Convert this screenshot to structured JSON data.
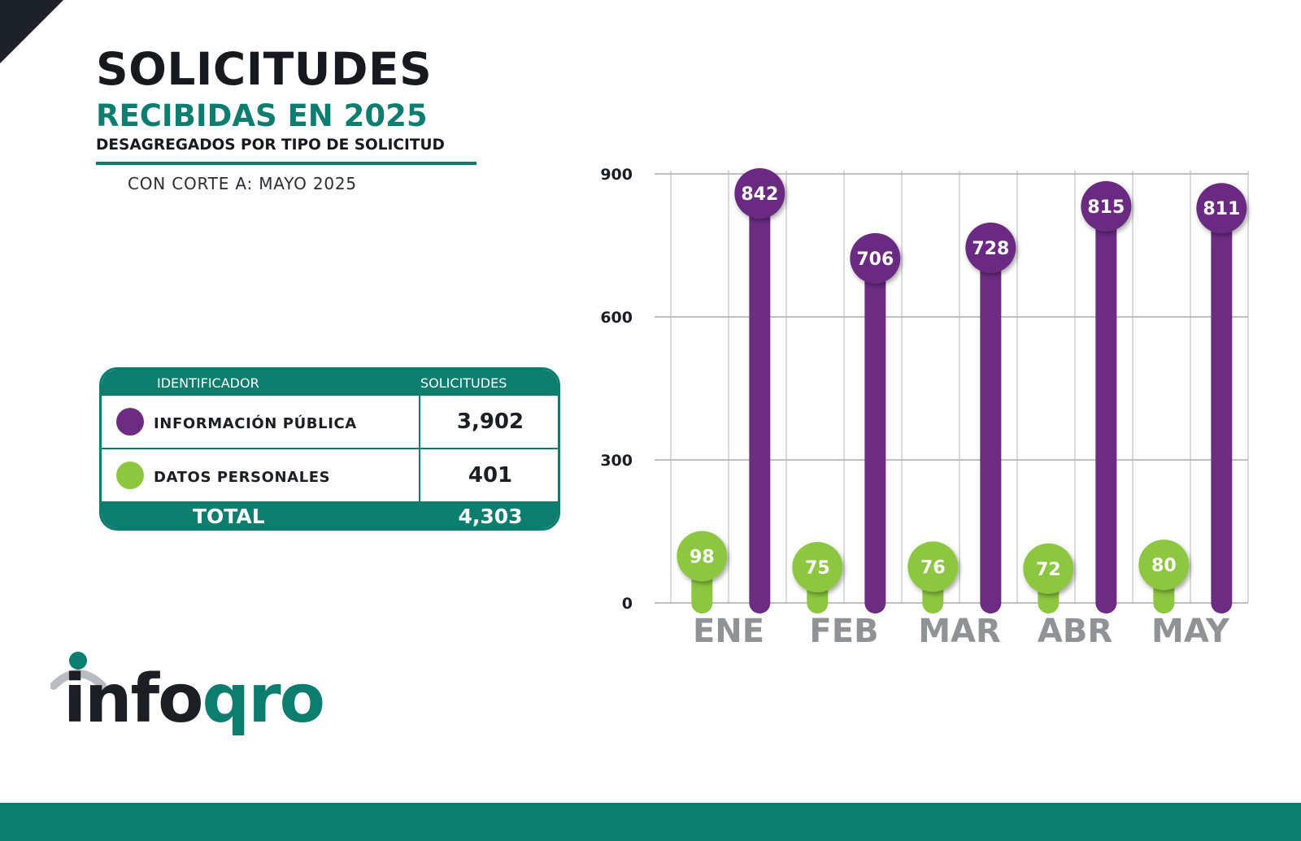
{
  "header": {
    "title_line1": "SOLICITUDES",
    "title_line2": "RECIBIDAS EN 2025",
    "title_line3": "DESAGREGADOS POR TIPO DE SOLICITUD",
    "cutoff": "CON CORTE A: MAYO 2025"
  },
  "summary": {
    "col_identifier": "IDENTIFICADOR",
    "col_requests": "SOLICITUDES",
    "rows": [
      {
        "label": "INFORMACIÓN PÚBLICA",
        "value": "3,902",
        "color": "#6b2c82"
      },
      {
        "label": "DATOS PERSONALES",
        "value": "401",
        "color": "#8dc63f"
      }
    ],
    "total_label": "TOTAL",
    "total_value": "4,303"
  },
  "logo": {
    "part1": "info",
    "part2": "qro"
  },
  "colors": {
    "teal": "#0d7d70",
    "purple": "#6b2c82",
    "green": "#8dc63f",
    "dark": "#1b1f24"
  },
  "chart_data": {
    "type": "bar",
    "categories": [
      "ENE",
      "FEB",
      "MAR",
      "ABR",
      "MAY"
    ],
    "series": [
      {
        "values": [
          98,
          75,
          76,
          72,
          80
        ],
        "color": "#8dc63f"
      },
      {
        "values": [
          842,
          706,
          728,
          815,
          811
        ],
        "color": "#6b2c82"
      }
    ],
    "ylim": [
      0,
      900
    ],
    "yticks": [
      0,
      300,
      600,
      900
    ],
    "grid": true,
    "title": "",
    "xlabel": "",
    "ylabel": ""
  }
}
